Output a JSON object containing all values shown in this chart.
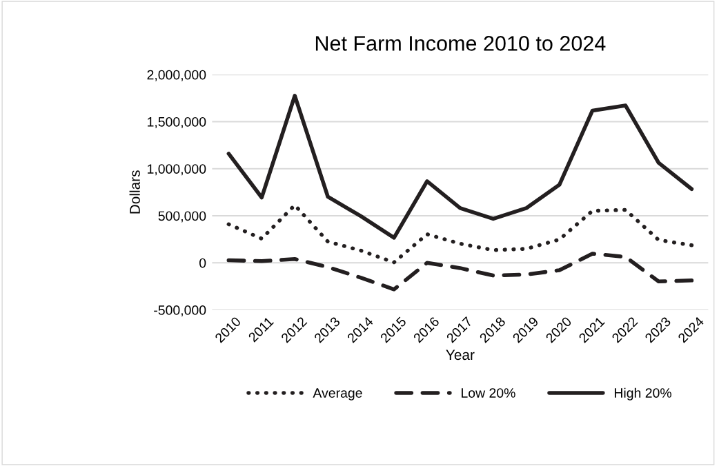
{
  "chart_data": {
    "type": "line",
    "title": "Net Farm Income 2010 to 2024",
    "xlabel": "Year",
    "ylabel": "Dollars",
    "categories": [
      "2010",
      "2011",
      "2012",
      "2013",
      "2014",
      "2015",
      "2016",
      "2017",
      "2018",
      "2019",
      "2020",
      "2021",
      "2022",
      "2023",
      "2024"
    ],
    "series": [
      {
        "name": "Average",
        "color": "#231f20",
        "line_style": "dotted",
        "values": [
          410000,
          257000,
          613000,
          225000,
          130000,
          5000,
          304000,
          203000,
          135000,
          149000,
          248000,
          552000,
          563000,
          243000,
          187000
        ]
      },
      {
        "name": "Low 20%",
        "color": "#231f20",
        "line_style": "dashed",
        "values": [
          27000,
          18000,
          40000,
          -45000,
          -158000,
          -282000,
          0,
          -56000,
          -135000,
          -124000,
          -79000,
          97000,
          63000,
          -198000,
          -187000
        ]
      },
      {
        "name": "High 20%",
        "color": "#231f20",
        "line_style": "solid",
        "values": [
          1160000,
          694000,
          1775000,
          703000,
          495000,
          266000,
          867000,
          581000,
          468000,
          581000,
          829000,
          1617000,
          1671000,
          1063000,
          784000
        ]
      }
    ],
    "ylim": [
      -500000,
      2000000
    ],
    "yticks": [
      {
        "value": -500000,
        "label": "-500,000"
      },
      0,
      {
        "value": 500000,
        "label": "500,000"
      },
      {
        "value": 1000000,
        "label": "1,000,000"
      },
      {
        "value": 1500000,
        "label": "1,500,000"
      },
      {
        "value": 2000000,
        "label": "2,000,000"
      }
    ],
    "grid": "y",
    "legend": "bottom"
  }
}
